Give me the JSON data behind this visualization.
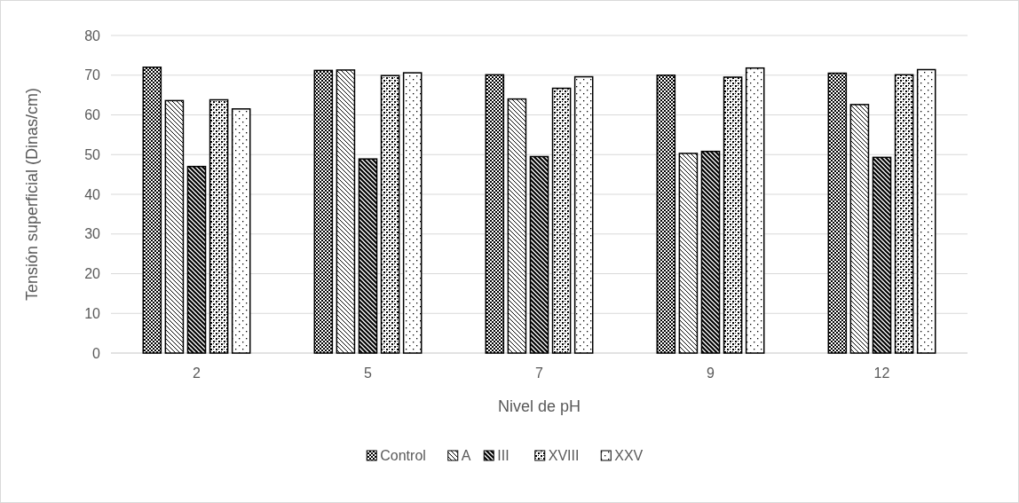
{
  "chart_data": {
    "type": "bar",
    "xlabel": "Nivel de pH",
    "ylabel": "Tensión superficial (Dinas/cm)",
    "categories": [
      "2",
      "5",
      "7",
      "9",
      "12"
    ],
    "series": [
      {
        "name": "Control",
        "color": "#000000",
        "values": [
          72,
          71.2,
          70.1,
          70,
          70.5
        ]
      },
      {
        "name": "A",
        "color": "#000000",
        "values": [
          63.6,
          71.3,
          64,
          50.3,
          62.6
        ]
      },
      {
        "name": "III",
        "color": "#000000",
        "values": [
          47,
          48.9,
          49.5,
          50.8,
          49.3
        ]
      },
      {
        "name": "XVIII",
        "color": "#000000",
        "values": [
          63.8,
          69.9,
          66.7,
          69.5,
          70.1
        ]
      },
      {
        "name": "XXV",
        "color": "#000000",
        "values": [
          61.5,
          70.6,
          69.6,
          71.8,
          71.4
        ]
      }
    ],
    "ylim": [
      0,
      80
    ],
    "yticks": [
      0,
      10,
      20,
      30,
      40,
      50,
      60,
      70,
      80
    ],
    "grid": "y",
    "legend": "bottom"
  }
}
